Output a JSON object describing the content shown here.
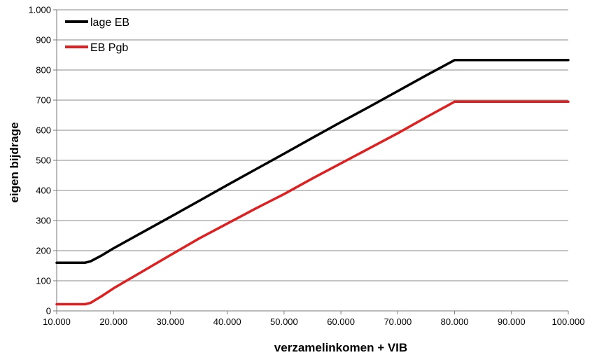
{
  "chart_data": {
    "type": "line",
    "title": "",
    "xlabel": "verzamelinkomen + VIB",
    "ylabel": "eigen bijdrage",
    "xlim": [
      10000,
      100000
    ],
    "ylim": [
      0,
      1000
    ],
    "x_ticks": [
      10000,
      20000,
      30000,
      40000,
      50000,
      60000,
      70000,
      80000,
      90000,
      100000
    ],
    "x_tick_labels": [
      "10.000",
      "20.000",
      "30.000",
      "40.000",
      "50.000",
      "60.000",
      "70.000",
      "80.000",
      "90.000",
      "100.000"
    ],
    "y_ticks": [
      0,
      100,
      200,
      300,
      400,
      500,
      600,
      700,
      800,
      900,
      1000
    ],
    "y_tick_labels": [
      "0",
      "100",
      "200",
      "300",
      "400",
      "500",
      "600",
      "700",
      "800",
      "900",
      "1.000"
    ],
    "grid": "horizontal",
    "legend_position": "top-left",
    "series": [
      {
        "name": "lage EB",
        "color": "#000000",
        "x": [
          10000,
          15000,
          16000,
          18000,
          20000,
          25000,
          30000,
          35000,
          40000,
          45000,
          50000,
          55000,
          60000,
          65000,
          70000,
          75000,
          80000,
          90000,
          100000
        ],
        "y": [
          160,
          160,
          165,
          185,
          208,
          260,
          312,
          365,
          418,
          470,
          522,
          575,
          627,
          678,
          730,
          782,
          833,
          833,
          833
        ]
      },
      {
        "name": "EB Pgb",
        "color": "#e02020",
        "x": [
          10000,
          15000,
          16000,
          18000,
          20000,
          25000,
          30000,
          35000,
          40000,
          45000,
          50000,
          55000,
          60000,
          65000,
          70000,
          75000,
          80000,
          90000,
          100000
        ],
        "y": [
          22,
          22,
          27,
          50,
          75,
          130,
          185,
          240,
          290,
          340,
          388,
          440,
          490,
          540,
          590,
          643,
          695,
          695,
          695
        ]
      }
    ]
  }
}
